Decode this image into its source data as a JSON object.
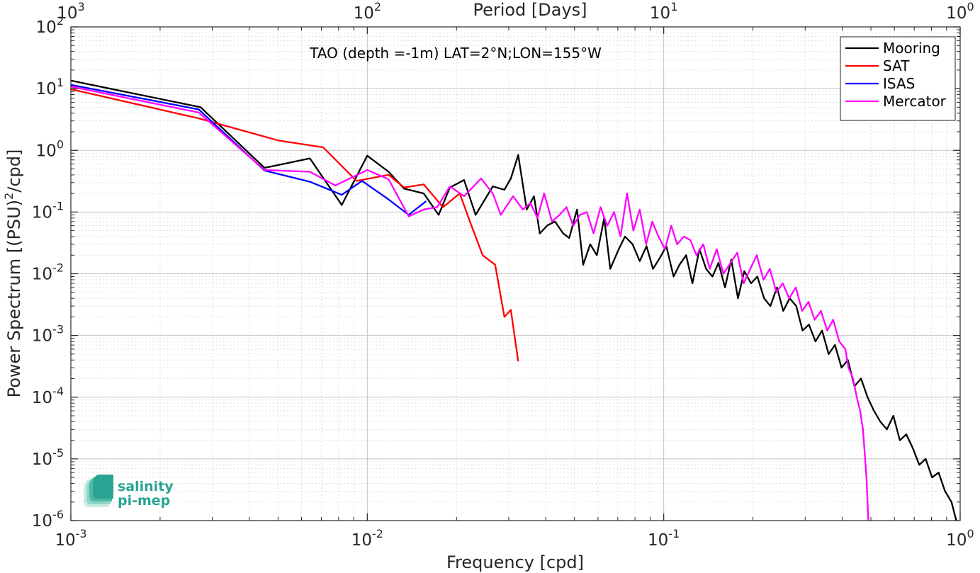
{
  "chart_data": {
    "type": "line",
    "title": "TAO (depth =-1m) LAT=2°N;LON=155°W",
    "xlabel": "Frequency [cpd]",
    "ylabel_main": "Power Spectrum [(PSU)",
    "ylabel_sup": "2",
    "ylabel_tail": "/cpd]",
    "top_xlabel": "Period [Days]",
    "x_scale": "log",
    "y_scale": "log",
    "xlim": [
      0.001,
      1
    ],
    "ylim": [
      1e-06,
      100
    ],
    "grid": true,
    "legend_position": "top-right",
    "x_ticks": [
      {
        "value": 0.001,
        "base": "10",
        "exp": "-3"
      },
      {
        "value": 0.01,
        "base": "10",
        "exp": "-2"
      },
      {
        "value": 0.1,
        "base": "10",
        "exp": "-1"
      },
      {
        "value": 1,
        "base": "10",
        "exp": "0"
      }
    ],
    "top_ticks": [
      {
        "freq": 0.001,
        "base": "10",
        "exp": "3"
      },
      {
        "freq": 0.01,
        "base": "10",
        "exp": "2"
      },
      {
        "freq": 0.1,
        "base": "10",
        "exp": "1"
      },
      {
        "freq": 1,
        "base": "10",
        "exp": "0"
      }
    ],
    "y_ticks": [
      {
        "value": 1e-06,
        "base": "10",
        "exp": "-6"
      },
      {
        "value": 1e-05,
        "base": "10",
        "exp": "-5"
      },
      {
        "value": 0.0001,
        "base": "10",
        "exp": "-4"
      },
      {
        "value": 0.001,
        "base": "10",
        "exp": "-3"
      },
      {
        "value": 0.01,
        "base": "10",
        "exp": "-2"
      },
      {
        "value": 0.1,
        "base": "10",
        "exp": "-1"
      },
      {
        "value": 1,
        "base": "10",
        "exp": "0"
      },
      {
        "value": 10,
        "base": "10",
        "exp": "1"
      },
      {
        "value": 100,
        "base": "10",
        "exp": "2"
      }
    ],
    "series": [
      {
        "name": "Mooring",
        "color": "#000000",
        "points": [
          [
            0.001,
            13.5
          ],
          [
            0.00274,
            5.0
          ],
          [
            0.0045,
            0.52
          ],
          [
            0.0064,
            0.74
          ],
          [
            0.0082,
            0.13
          ],
          [
            0.01,
            0.82
          ],
          [
            0.0118,
            0.45
          ],
          [
            0.0133,
            0.24
          ],
          [
            0.0155,
            0.2
          ],
          [
            0.0174,
            0.09
          ],
          [
            0.019,
            0.25
          ],
          [
            0.0212,
            0.33
          ],
          [
            0.0232,
            0.09
          ],
          [
            0.0265,
            0.26
          ],
          [
            0.029,
            0.23
          ],
          [
            0.0305,
            0.35
          ],
          [
            0.0323,
            0.84
          ],
          [
            0.0345,
            0.11
          ],
          [
            0.0365,
            0.18
          ],
          [
            0.0382,
            0.045
          ],
          [
            0.0405,
            0.061
          ],
          [
            0.043,
            0.07
          ],
          [
            0.0458,
            0.045
          ],
          [
            0.048,
            0.038
          ],
          [
            0.051,
            0.11
          ],
          [
            0.0535,
            0.014
          ],
          [
            0.0565,
            0.03
          ],
          [
            0.0595,
            0.02
          ],
          [
            0.063,
            0.08
          ],
          [
            0.066,
            0.012
          ],
          [
            0.0705,
            0.025
          ],
          [
            0.074,
            0.04
          ],
          [
            0.0785,
            0.03
          ],
          [
            0.083,
            0.016
          ],
          [
            0.0875,
            0.028
          ],
          [
            0.092,
            0.012
          ],
          [
            0.097,
            0.018
          ],
          [
            0.102,
            0.028
          ],
          [
            0.108,
            0.009
          ],
          [
            0.113,
            0.014
          ],
          [
            0.119,
            0.02
          ],
          [
            0.125,
            0.007
          ],
          [
            0.132,
            0.025
          ],
          [
            0.139,
            0.012
          ],
          [
            0.146,
            0.009
          ],
          [
            0.153,
            0.015
          ],
          [
            0.161,
            0.006
          ],
          [
            0.169,
            0.017
          ],
          [
            0.178,
            0.004
          ],
          [
            0.187,
            0.011
          ],
          [
            0.197,
            0.007
          ],
          [
            0.207,
            0.009
          ],
          [
            0.218,
            0.004
          ],
          [
            0.229,
            0.003
          ],
          [
            0.241,
            0.006
          ],
          [
            0.253,
            0.0025
          ],
          [
            0.266,
            0.004
          ],
          [
            0.28,
            0.003
          ],
          [
            0.294,
            0.0012
          ],
          [
            0.309,
            0.0015
          ],
          [
            0.325,
            0.0008
          ],
          [
            0.342,
            0.0012
          ],
          [
            0.36,
            0.0005
          ],
          [
            0.378,
            0.0007
          ],
          [
            0.398,
            0.0003
          ],
          [
            0.418,
            0.0004
          ],
          [
            0.44,
            0.00015
          ],
          [
            0.463,
            0.0002
          ],
          [
            0.487,
            0.0001
          ],
          [
            0.512,
            6e-05
          ],
          [
            0.538,
            4e-05
          ],
          [
            0.566,
            3e-05
          ],
          [
            0.595,
            5e-05
          ],
          [
            0.626,
            2e-05
          ],
          [
            0.658,
            2.5e-05
          ],
          [
            0.692,
            1.5e-05
          ],
          [
            0.728,
            8e-06
          ],
          [
            0.765,
            1e-05
          ],
          [
            0.804,
            5e-06
          ],
          [
            0.846,
            6e-06
          ],
          [
            0.889,
            3e-06
          ],
          [
            0.935,
            2e-06
          ],
          [
            0.97,
            1e-06
          ]
        ]
      },
      {
        "name": "SAT",
        "color": "#ff0000",
        "points": [
          [
            0.001,
            9.8
          ],
          [
            0.0027,
            3.3
          ],
          [
            0.005,
            1.45
          ],
          [
            0.0071,
            1.12
          ],
          [
            0.0092,
            0.32
          ],
          [
            0.0118,
            0.4
          ],
          [
            0.0133,
            0.25
          ],
          [
            0.0155,
            0.28
          ],
          [
            0.018,
            0.12
          ],
          [
            0.0205,
            0.2
          ],
          [
            0.0222,
            0.07
          ],
          [
            0.0245,
            0.02
          ],
          [
            0.027,
            0.014
          ],
          [
            0.029,
            0.002
          ],
          [
            0.0305,
            0.0026
          ],
          [
            0.0323,
            0.00038
          ]
        ]
      },
      {
        "name": "ISAS",
        "color": "#0000ff",
        "points": [
          [
            0.001,
            11.5
          ],
          [
            0.0027,
            4.6
          ],
          [
            0.0045,
            0.47
          ],
          [
            0.0064,
            0.31
          ],
          [
            0.0082,
            0.19
          ],
          [
            0.0096,
            0.32
          ],
          [
            0.0118,
            0.16
          ],
          [
            0.0138,
            0.09
          ],
          [
            0.0158,
            0.15
          ]
        ]
      },
      {
        "name": "Mercator",
        "color": "#ff00ff",
        "points": [
          [
            0.001,
            10.8
          ],
          [
            0.0027,
            4.1
          ],
          [
            0.0045,
            0.48
          ],
          [
            0.0064,
            0.45
          ],
          [
            0.0078,
            0.27
          ],
          [
            0.01,
            0.48
          ],
          [
            0.0118,
            0.34
          ],
          [
            0.0138,
            0.085
          ],
          [
            0.0155,
            0.11
          ],
          [
            0.0172,
            0.12
          ],
          [
            0.019,
            0.26
          ],
          [
            0.0212,
            0.18
          ],
          [
            0.0242,
            0.35
          ],
          [
            0.0265,
            0.2
          ],
          [
            0.0282,
            0.09
          ],
          [
            0.031,
            0.18
          ],
          [
            0.0335,
            0.11
          ],
          [
            0.0355,
            0.14
          ],
          [
            0.0375,
            0.08
          ],
          [
            0.0395,
            0.2
          ],
          [
            0.042,
            0.07
          ],
          [
            0.0445,
            0.09
          ],
          [
            0.047,
            0.12
          ],
          [
            0.0495,
            0.06
          ],
          [
            0.0522,
            0.09
          ],
          [
            0.055,
            0.1
          ],
          [
            0.058,
            0.045
          ],
          [
            0.0612,
            0.12
          ],
          [
            0.0645,
            0.06
          ],
          [
            0.068,
            0.1
          ],
          [
            0.0715,
            0.04
          ],
          [
            0.0752,
            0.2
          ],
          [
            0.079,
            0.05
          ],
          [
            0.083,
            0.11
          ],
          [
            0.0872,
            0.03
          ],
          [
            0.0915,
            0.07
          ],
          [
            0.096,
            0.04
          ],
          [
            0.101,
            0.025
          ],
          [
            0.106,
            0.06
          ],
          [
            0.111,
            0.03
          ],
          [
            0.117,
            0.04
          ],
          [
            0.123,
            0.035
          ],
          [
            0.129,
            0.02
          ],
          [
            0.136,
            0.03
          ],
          [
            0.143,
            0.012
          ],
          [
            0.151,
            0.025
          ],
          [
            0.159,
            0.01
          ],
          [
            0.168,
            0.015
          ],
          [
            0.177,
            0.022
          ],
          [
            0.186,
            0.007
          ],
          [
            0.196,
            0.012
          ],
          [
            0.206,
            0.02
          ],
          [
            0.217,
            0.008
          ],
          [
            0.228,
            0.012
          ],
          [
            0.24,
            0.005
          ],
          [
            0.252,
            0.007
          ],
          [
            0.265,
            0.004
          ],
          [
            0.279,
            0.006
          ],
          [
            0.293,
            0.0025
          ],
          [
            0.308,
            0.0035
          ],
          [
            0.323,
            0.0018
          ],
          [
            0.339,
            0.0025
          ],
          [
            0.356,
            0.0012
          ],
          [
            0.373,
            0.0018
          ],
          [
            0.391,
            0.0008
          ],
          [
            0.41,
            0.0006
          ],
          [
            0.42,
            0.0003
          ],
          [
            0.435,
            0.0002
          ],
          [
            0.448,
            0.0001
          ],
          [
            0.46,
            6e-05
          ],
          [
            0.47,
            3e-05
          ],
          [
            0.478,
            1e-05
          ],
          [
            0.483,
            5e-06
          ],
          [
            0.487,
            2e-06
          ],
          [
            0.49,
            1e-06
          ]
        ]
      }
    ]
  },
  "logo": {
    "line1": "salinity",
    "line2": "pi-mep",
    "color": "#2aa392"
  }
}
